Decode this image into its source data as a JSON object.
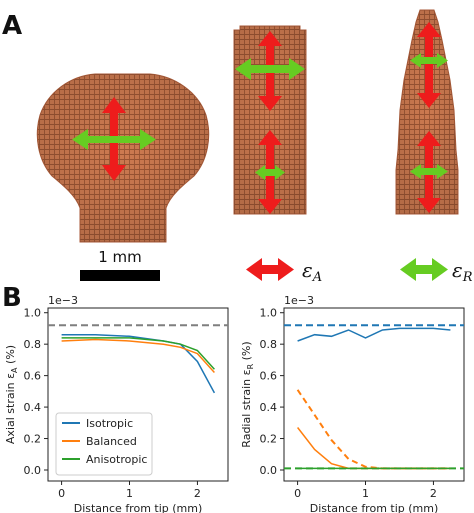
{
  "panels": {
    "a_label": "A",
    "b_label": "B"
  },
  "scale_bar": {
    "label": "1 mm"
  },
  "strain_legend": {
    "axial_symbol": "ε",
    "axial_sub": "A",
    "radial_symbol": "ε",
    "radial_sub": "R",
    "axial_color": "#ee1c1c",
    "radial_color": "#66cc22"
  },
  "colors": {
    "tissue": "#c8744b",
    "tissue_dark": "#8f4a2c",
    "isotropic": "#1f77b4",
    "balanced": "#ff7f0e",
    "anisotropic": "#2ca02c",
    "reference_gray": "#7f7f7f"
  },
  "chart_data": [
    {
      "type": "line",
      "xlabel": "Distance from tip (mm)",
      "ylabel": "Axial strain ε",
      "ylabel_sub": "A",
      "ylabel_unit": " (%)",
      "y_multiplier": "1e−3",
      "xlim": [
        -0.2,
        2.45
      ],
      "ylim": [
        -0.07,
        1.03
      ],
      "xticks": [
        0,
        1,
        2
      ],
      "yticks": [
        "0.0",
        "0.2",
        "0.4",
        "0.6",
        "0.8",
        "1.0"
      ],
      "ytick_values": [
        0,
        0.2,
        0.4,
        0.6,
        0.8,
        1.0
      ],
      "reference_lines": [
        {
          "y": 0.92,
          "color": "#7f7f7f",
          "style": "dashed"
        }
      ],
      "legend": {
        "position": "lower-left",
        "entries": [
          "Isotropic",
          "Balanced",
          "Anisotropic"
        ]
      },
      "series": [
        {
          "name": "Isotropic",
          "color": "#1f77b4",
          "style": "solid",
          "x": [
            0,
            0.5,
            1.0,
            1.5,
            1.75,
            2.0,
            2.25
          ],
          "y": [
            0.86,
            0.86,
            0.85,
            0.82,
            0.8,
            0.69,
            0.49
          ]
        },
        {
          "name": "Balanced",
          "color": "#ff7f0e",
          "style": "solid",
          "x": [
            0,
            0.5,
            1.0,
            1.5,
            1.75,
            2.0,
            2.25
          ],
          "y": [
            0.82,
            0.83,
            0.82,
            0.8,
            0.78,
            0.74,
            0.62
          ]
        },
        {
          "name": "Anisotropic",
          "color": "#2ca02c",
          "style": "solid",
          "x": [
            0,
            0.5,
            1.0,
            1.5,
            1.75,
            2.0,
            2.25
          ],
          "y": [
            0.84,
            0.84,
            0.84,
            0.82,
            0.8,
            0.76,
            0.64
          ]
        }
      ]
    },
    {
      "type": "line",
      "xlabel": "Distance from tip (mm)",
      "ylabel": "Radial strain ε",
      "ylabel_sub": "R",
      "ylabel_unit": " (%)",
      "y_multiplier": "1e−3",
      "xlim": [
        -0.2,
        2.45
      ],
      "ylim": [
        -0.07,
        1.03
      ],
      "xticks": [
        0,
        1,
        2
      ],
      "yticks": [
        "0.0",
        "0.2",
        "0.4",
        "0.6",
        "0.8",
        "1.0"
      ],
      "ytick_values": [
        0,
        0.2,
        0.4,
        0.6,
        0.8,
        1.0
      ],
      "reference_lines": [
        {
          "y": 0.92,
          "color": "#1f77b4",
          "style": "dashed"
        },
        {
          "y": 0.01,
          "color": "#2ca02c",
          "style": "dashed"
        }
      ],
      "series": [
        {
          "name": "Isotropic",
          "color": "#1f77b4",
          "style": "solid",
          "x": [
            0,
            0.25,
            0.5,
            0.75,
            1.0,
            1.25,
            1.5,
            1.75,
            2.0,
            2.25
          ],
          "y": [
            0.82,
            0.86,
            0.85,
            0.89,
            0.84,
            0.89,
            0.9,
            0.9,
            0.9,
            0.89
          ]
        },
        {
          "name": "Balanced",
          "color": "#ff7f0e",
          "style": "solid",
          "x": [
            0,
            0.25,
            0.5,
            0.75,
            1.0,
            1.25,
            1.5,
            1.75,
            2.0,
            2.25
          ],
          "y": [
            0.27,
            0.13,
            0.04,
            0.01,
            0.01,
            0.01,
            0.01,
            0.01,
            0.01,
            0.01
          ]
        },
        {
          "name": "Balanced",
          "color": "#ff7f0e",
          "style": "dashed",
          "x": [
            0,
            0.25,
            0.5,
            0.75,
            1.0,
            1.25,
            1.5,
            1.75,
            2.0,
            2.25
          ],
          "y": [
            0.51,
            0.35,
            0.19,
            0.07,
            0.02,
            0.01,
            0.01,
            0.01,
            0.01,
            0.01
          ]
        },
        {
          "name": "Anisotropic",
          "color": "#2ca02c",
          "style": "solid",
          "x": [
            0,
            0.25,
            0.5,
            0.75,
            1.0,
            1.25,
            1.5,
            1.75,
            2.0,
            2.25
          ],
          "y": [
            0.01,
            0.01,
            0.01,
            0.01,
            0.01,
            0.01,
            0.01,
            0.01,
            0.01,
            0.01
          ]
        }
      ]
    }
  ]
}
